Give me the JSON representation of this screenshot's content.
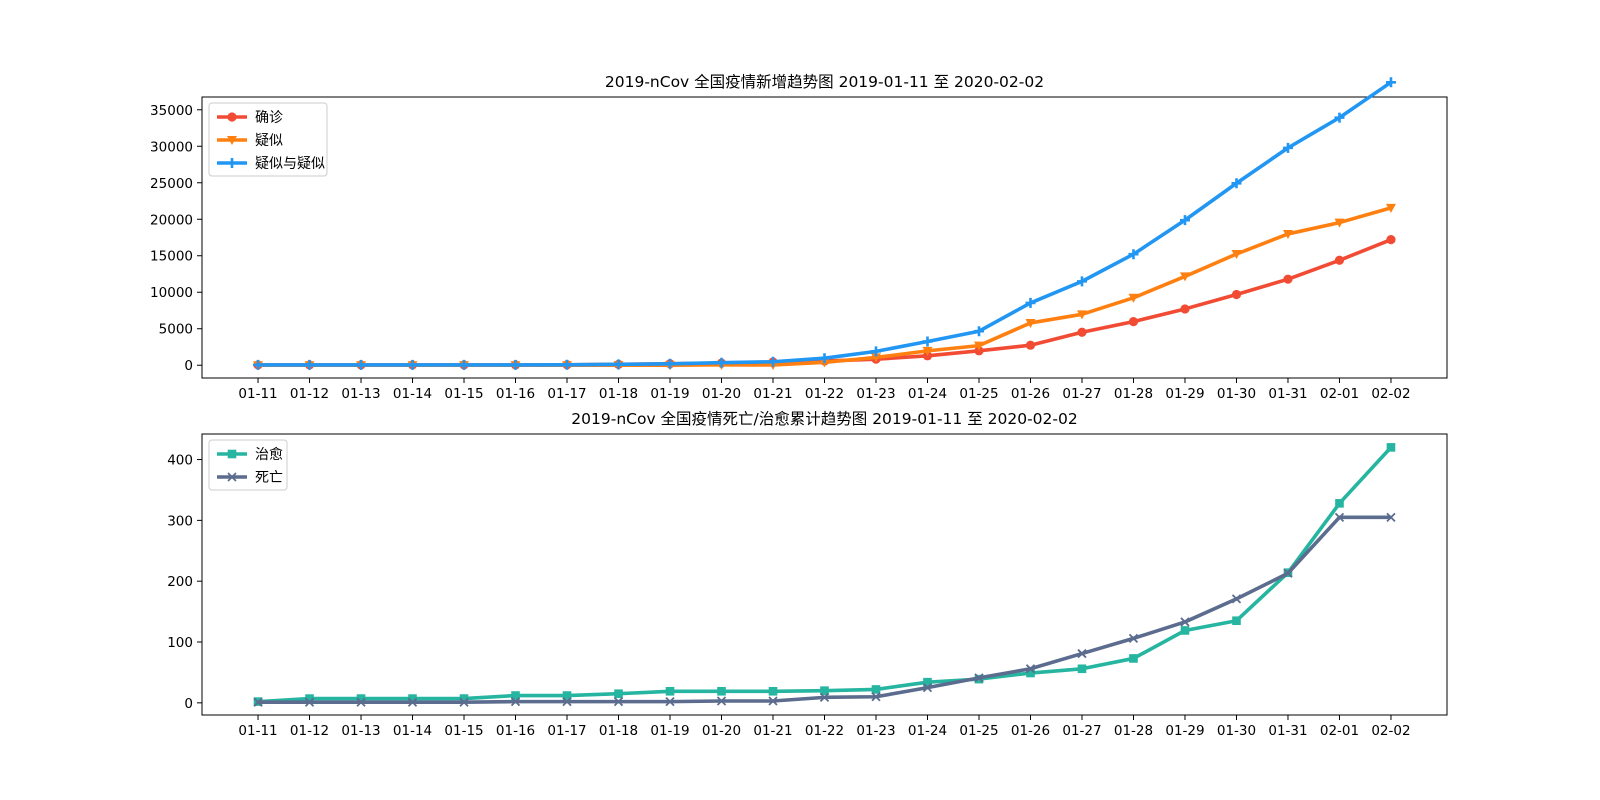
{
  "chart_data": [
    {
      "type": "line",
      "title": "2019-nCov 全国疫情新增趋势图 2019-01-11 至 2020-02-02",
      "xlabel": "",
      "ylabel": "",
      "categories": [
        "01-11",
        "01-12",
        "01-13",
        "01-14",
        "01-15",
        "01-16",
        "01-17",
        "01-18",
        "01-19",
        "01-20",
        "01-21",
        "01-22",
        "01-23",
        "01-24",
        "01-25",
        "01-26",
        "01-27",
        "01-28",
        "01-29",
        "01-30",
        "01-31",
        "02-01",
        "02-02"
      ],
      "ylim": [
        -1750,
        36750
      ],
      "yticks": [
        0,
        5000,
        10000,
        15000,
        20000,
        25000,
        30000,
        35000
      ],
      "grid": false,
      "legend_position": "top-left",
      "series": [
        {
          "name": "确诊",
          "color": "#f24b34",
          "marker": "circle",
          "values": [
            41,
            41,
            41,
            41,
            41,
            45,
            62,
            121,
            198,
            291,
            440,
            571,
            830,
            1287,
            1975,
            2744,
            4515,
            5974,
            7711,
            9692,
            11791,
            14380,
            17205
          ]
        },
        {
          "name": "疑似",
          "color": "#ff8010",
          "marker": "triangle-down",
          "values": [
            0,
            0,
            0,
            0,
            0,
            0,
            0,
            0,
            0,
            54,
            37,
            393,
            1072,
            1965,
            2684,
            5794,
            6973,
            9239,
            12167,
            15238,
            17988,
            19544,
            21558
          ]
        },
        {
          "name": "疑似与疑似",
          "color": "#2196f3",
          "marker": "plus",
          "values": [
            41,
            41,
            41,
            41,
            41,
            45,
            62,
            121,
            198,
            345,
            477,
            964,
            1902,
            3252,
            4659,
            8538,
            11488,
            15213,
            19878,
            24930,
            29779,
            33924,
            38763
          ]
        }
      ]
    },
    {
      "type": "line",
      "title": "2019-nCov 全国疫情死亡/治愈累计趋势图 2019-01-11 至 2020-02-02",
      "xlabel": "",
      "ylabel": "",
      "categories": [
        "01-11",
        "01-12",
        "01-13",
        "01-14",
        "01-15",
        "01-16",
        "01-17",
        "01-18",
        "01-19",
        "01-20",
        "01-21",
        "01-22",
        "01-23",
        "01-24",
        "01-25",
        "01-26",
        "01-27",
        "01-28",
        "01-29",
        "01-30",
        "01-31",
        "02-01",
        "02-02"
      ],
      "ylim": [
        -20,
        442
      ],
      "yticks": [
        0,
        100,
        200,
        300,
        400
      ],
      "grid": false,
      "legend_position": "top-left",
      "series": [
        {
          "name": "治愈",
          "color": "#26b5a0",
          "marker": "square",
          "values": [
            2,
            7,
            7,
            7,
            7,
            12,
            12,
            15,
            19,
            19,
            19,
            20,
            22,
            34,
            39,
            49,
            56,
            73,
            119,
            135,
            214,
            328,
            420
          ]
        },
        {
          "name": "死亡",
          "color": "#5b6c8e",
          "marker": "x",
          "values": [
            1,
            1,
            1,
            1,
            1,
            2,
            2,
            2,
            2,
            3,
            3,
            9,
            10,
            25,
            41,
            56,
            81,
            106,
            133,
            171,
            213,
            305,
            305
          ]
        }
      ]
    }
  ]
}
